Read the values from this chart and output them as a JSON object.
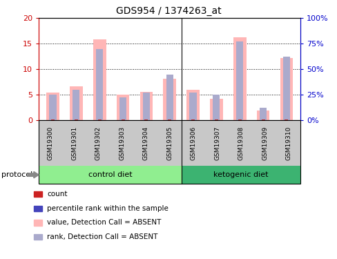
{
  "title": "GDS954 / 1374263_at",
  "samples": [
    "GSM19300",
    "GSM19301",
    "GSM19302",
    "GSM19303",
    "GSM19304",
    "GSM19305",
    "GSM19306",
    "GSM19307",
    "GSM19308",
    "GSM19309",
    "GSM19310"
  ],
  "pink_values": [
    5.4,
    6.7,
    15.8,
    5.0,
    5.6,
    8.1,
    6.0,
    4.3,
    16.3,
    1.9,
    12.2
  ],
  "blue_values": [
    5.0,
    6.0,
    14.0,
    4.5,
    5.5,
    9.0,
    5.5,
    5.0,
    15.5,
    2.5,
    12.5
  ],
  "red_values": [
    0.25,
    0.2,
    0.2,
    0.2,
    0.2,
    0.25,
    0.2,
    0.2,
    0.2,
    0.2,
    0.25
  ],
  "ylim_left": [
    0,
    20
  ],
  "ylim_right": [
    0,
    100
  ],
  "yticks_left": [
    0,
    5,
    10,
    15,
    20
  ],
  "yticks_right": [
    0,
    25,
    50,
    75,
    100
  ],
  "ytick_labels_left": [
    "0",
    "5",
    "10",
    "15",
    "20"
  ],
  "ytick_labels_right": [
    "0%",
    "25%",
    "50%",
    "75%",
    "100%"
  ],
  "pink_color": "#ffb6b6",
  "blue_color": "#aaaacc",
  "red_color": "#cc2222",
  "tick_color_left": "#cc0000",
  "tick_color_right": "#0000cc",
  "legend_labels": [
    "count",
    "percentile rank within the sample",
    "value, Detection Call = ABSENT",
    "rank, Detection Call = ABSENT"
  ],
  "legend_colors": [
    "#cc2222",
    "#4444bb",
    "#ffb6b6",
    "#aaaacc"
  ],
  "ctrl_color": "#90EE90",
  "keto_color": "#3CB371",
  "gray_color": "#c8c8c8"
}
